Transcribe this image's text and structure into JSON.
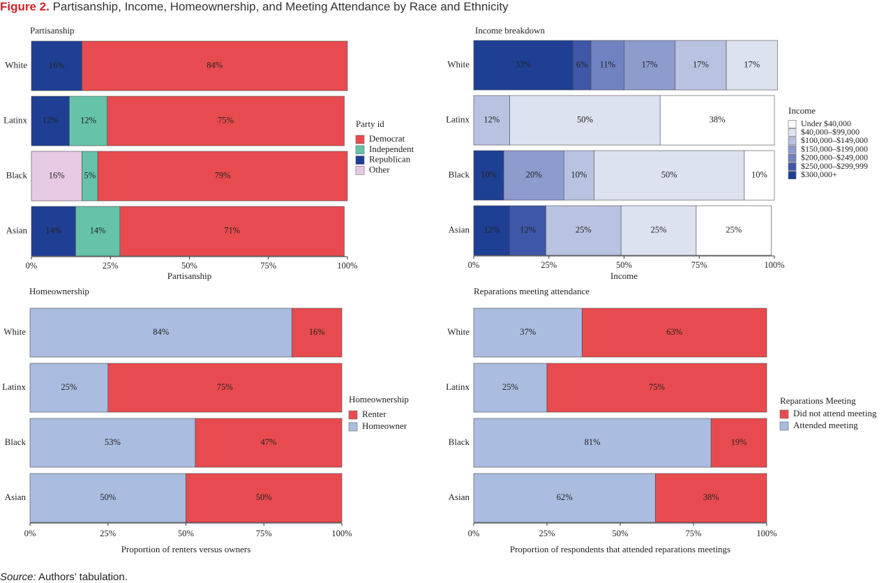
{
  "figure": {
    "title_lead": "Figure 2.",
    "title_rest": " Partisanship, Income, Homeownership, and Meeting Attendance by Race and Ethnicity"
  },
  "source": {
    "lead": "Source:",
    "text": " Authors’ tabulation."
  },
  "chart_data": [
    {
      "id": "partisanship",
      "type": "bar",
      "orientation": "horizontal",
      "stacked": true,
      "title": "Partisanship",
      "xlabel": "Partisanship",
      "categories": [
        "White",
        "Latinx",
        "Black",
        "Asian"
      ],
      "xlim": [
        0,
        100
      ],
      "xticks": [
        "0%",
        "25%",
        "50%",
        "75%",
        "100%"
      ],
      "legend_title": "Party id",
      "legend_order": [
        "Democrat",
        "Independent",
        "Republican",
        "Other"
      ],
      "series": [
        {
          "name": "Other",
          "color": "#e8c9e3",
          "values": [
            0,
            0,
            16,
            0
          ]
        },
        {
          "name": "Republican",
          "color": "#1f3f94",
          "values": [
            16,
            12,
            0,
            14
          ]
        },
        {
          "name": "Independent",
          "color": "#66c2a9",
          "values": [
            0,
            12,
            5,
            14
          ]
        },
        {
          "name": "Democrat",
          "color": "#e84b4f",
          "values": [
            84,
            75,
            79,
            71
          ]
        }
      ]
    },
    {
      "id": "income",
      "type": "bar",
      "orientation": "horizontal",
      "stacked": true,
      "title": "Income breakdown",
      "xlabel": "Income",
      "categories": [
        "White",
        "Latinx",
        "Black",
        "Asian"
      ],
      "xlim": [
        0,
        100
      ],
      "xticks": [
        "0%",
        "25%",
        "50%",
        "75%",
        "100%"
      ],
      "legend_title": "Income",
      "legend_order": [
        "Under $40,000",
        "$40,000–$99,000",
        "$100,000–$149,000",
        "$150,000–$199,000",
        "$200,000–$249,000",
        "$250,000–$299,999",
        "$300,000+"
      ],
      "series": [
        {
          "name": "$300,000+",
          "color": "#1f3f94",
          "values": [
            33,
            0,
            10,
            12
          ]
        },
        {
          "name": "$250,000–$299,999",
          "color": "#3f57a8",
          "values": [
            6,
            0,
            0,
            12
          ]
        },
        {
          "name": "$200,000–$249,000",
          "color": "#7182c2",
          "values": [
            11,
            0,
            0,
            0
          ]
        },
        {
          "name": "$150,000–$199,000",
          "color": "#8d9bcd",
          "values": [
            17,
            0,
            20,
            0
          ]
        },
        {
          "name": "$100,000–$149,000",
          "color": "#b9c3e1",
          "values": [
            17,
            12,
            10,
            25
          ]
        },
        {
          "name": "$40,000–$99,000",
          "color": "#dde2f1",
          "values": [
            17,
            50,
            50,
            25
          ]
        },
        {
          "name": "Under $40,000",
          "color": "#ffffff",
          "values": [
            0,
            38,
            10,
            25
          ]
        }
      ]
    },
    {
      "id": "homeownership",
      "type": "bar",
      "orientation": "horizontal",
      "stacked": true,
      "title": "Homeownership",
      "xlabel": "Proportion of renters versus owners",
      "categories": [
        "White",
        "Latinx",
        "Black",
        "Asian"
      ],
      "xlim": [
        0,
        100
      ],
      "xticks": [
        "0%",
        "25%",
        "50%",
        "75%",
        "100%"
      ],
      "legend_title": "Homeownership",
      "legend_order": [
        "Renter",
        "Homeowner"
      ],
      "series": [
        {
          "name": "Homeowner",
          "color": "#aabcdf",
          "values": [
            84,
            25,
            53,
            50
          ]
        },
        {
          "name": "Renter",
          "color": "#e84b4f",
          "values": [
            16,
            75,
            47,
            50
          ]
        }
      ]
    },
    {
      "id": "meeting",
      "type": "bar",
      "orientation": "horizontal",
      "stacked": true,
      "title": "Reparations meeting attendance",
      "xlabel": "Proportion of respondents that attended reparations meetings",
      "categories": [
        "White",
        "Latinx",
        "Black",
        "Asian"
      ],
      "xlim": [
        0,
        100
      ],
      "xticks": [
        "0%",
        "25%",
        "50%",
        "75%",
        "100%"
      ],
      "legend_title": "Reparations Meeting",
      "legend_order": [
        "Did not attend meeting",
        "Attended meeting"
      ],
      "series": [
        {
          "name": "Attended meeting",
          "color": "#aabcdf",
          "values": [
            37,
            25,
            81,
            62
          ]
        },
        {
          "name": "Did not attend meeting",
          "color": "#e84b4f",
          "values": [
            63,
            75,
            19,
            38
          ]
        }
      ]
    }
  ]
}
